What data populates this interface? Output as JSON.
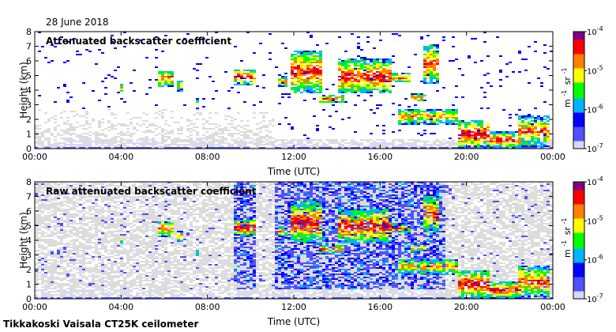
{
  "date_label": "28 June 2018",
  "footer": "Tikkakoski Vaisala CT25K ceilometer",
  "colors": {
    "clear_air": "#dcdcdc",
    "colormap": [
      "#d8d8ff",
      "#5050ff",
      "#0000ff",
      "#00b4ff",
      "#00ff00",
      "#ffff00",
      "#ff8000",
      "#ff0000",
      "#800080"
    ]
  },
  "chart_data": [
    {
      "type": "heatmap",
      "title": "Attenuated backscatter coefficient",
      "xlabel": "Time (UTC)",
      "ylabel": "Height (km)",
      "x_ticks": [
        "00:00",
        "04:00",
        "08:00",
        "12:00",
        "16:00",
        "20:00",
        "00:00"
      ],
      "xlim": [
        0,
        24
      ],
      "y_ticks": [
        "0",
        "1",
        "2",
        "3",
        "4",
        "5",
        "6",
        "7",
        "8"
      ],
      "ylim": [
        0,
        8
      ],
      "colorbar": {
        "scale": "log",
        "range": [
          1e-07,
          0.0001
        ],
        "tick_base": "10",
        "tick_exponents": [
          "-4",
          "-5",
          "-6",
          "-7"
        ],
        "unit_base": [
          "m",
          "sr"
        ],
        "unit_exponent": "-1"
      },
      "noise_level": "low",
      "cloud_features": [
        {
          "t_start": 3.9,
          "t_end": 4.05,
          "h_low": 3.8,
          "h_high": 4.6,
          "intensity": 0.7
        },
        {
          "t_start": 5.7,
          "t_end": 6.3,
          "h_low": 4.3,
          "h_high": 5.4,
          "intensity": 0.85
        },
        {
          "t_start": 6.5,
          "t_end": 6.8,
          "h_low": 4.0,
          "h_high": 4.7,
          "intensity": 0.7
        },
        {
          "t_start": 7.4,
          "t_end": 7.6,
          "h_low": 3.0,
          "h_high": 3.5,
          "intensity": 0.6
        },
        {
          "t_start": 9.2,
          "t_end": 10.1,
          "h_low": 4.4,
          "h_high": 5.5,
          "intensity": 0.95
        },
        {
          "t_start": 11.2,
          "t_end": 11.6,
          "h_low": 4.3,
          "h_high": 5.0,
          "intensity": 0.8
        },
        {
          "t_start": 11.8,
          "t_end": 13.2,
          "h_low": 3.8,
          "h_high": 6.8,
          "intensity": 0.9
        },
        {
          "t_start": 13.1,
          "t_end": 14.2,
          "h_low": 3.2,
          "h_high": 3.7,
          "intensity": 0.9
        },
        {
          "t_start": 14.0,
          "t_end": 16.5,
          "h_low": 3.8,
          "h_high": 6.2,
          "intensity": 0.9
        },
        {
          "t_start": 16.5,
          "t_end": 17.4,
          "h_low": 4.6,
          "h_high": 5.2,
          "intensity": 0.85
        },
        {
          "t_start": 17.3,
          "t_end": 18.0,
          "h_low": 3.3,
          "h_high": 3.8,
          "intensity": 0.8
        },
        {
          "t_start": 18.0,
          "t_end": 18.6,
          "h_low": 4.5,
          "h_high": 7.2,
          "intensity": 0.85
        },
        {
          "t_start": 16.8,
          "t_end": 19.5,
          "h_low": 1.7,
          "h_high": 2.8,
          "intensity": 0.75
        },
        {
          "t_start": 19.5,
          "t_end": 21.0,
          "h_low": 0.1,
          "h_high": 2.0,
          "intensity": 0.95
        },
        {
          "t_start": 21.0,
          "t_end": 22.4,
          "h_low": 0.1,
          "h_high": 1.2,
          "intensity": 0.9
        },
        {
          "t_start": 22.3,
          "t_end": 23.8,
          "h_low": 0.2,
          "h_high": 2.3,
          "intensity": 0.85
        }
      ]
    },
    {
      "type": "heatmap",
      "title": "Raw attenuated backscatter coefficient",
      "xlabel": "Time (UTC)",
      "ylabel": "Height (km)",
      "x_ticks": [
        "00:00",
        "04:00",
        "08:00",
        "12:00",
        "16:00",
        "20:00",
        "00:00"
      ],
      "xlim": [
        0,
        24
      ],
      "y_ticks": [
        "0",
        "1",
        "2",
        "3",
        "4",
        "5",
        "6",
        "7",
        "8"
      ],
      "ylim": [
        0,
        8
      ],
      "colorbar": {
        "scale": "log",
        "range": [
          1e-07,
          0.0001
        ],
        "tick_base": "10",
        "tick_exponents": [
          "-4",
          "-5",
          "-6",
          "-7"
        ],
        "unit_base": [
          "m",
          "sr"
        ],
        "unit_exponent": "-1"
      },
      "noise_level": "high",
      "cloud_features": [
        {
          "t_start": 3.9,
          "t_end": 4.05,
          "h_low": 3.8,
          "h_high": 4.6,
          "intensity": 0.7
        },
        {
          "t_start": 5.7,
          "t_end": 6.3,
          "h_low": 4.3,
          "h_high": 5.4,
          "intensity": 0.85
        },
        {
          "t_start": 6.5,
          "t_end": 6.8,
          "h_low": 4.0,
          "h_high": 4.7,
          "intensity": 0.7
        },
        {
          "t_start": 7.4,
          "t_end": 7.6,
          "h_low": 3.0,
          "h_high": 3.5,
          "intensity": 0.6
        },
        {
          "t_start": 9.2,
          "t_end": 10.1,
          "h_low": 4.4,
          "h_high": 5.5,
          "intensity": 0.95
        },
        {
          "t_start": 11.2,
          "t_end": 11.6,
          "h_low": 4.3,
          "h_high": 5.0,
          "intensity": 0.8
        },
        {
          "t_start": 11.8,
          "t_end": 13.2,
          "h_low": 3.8,
          "h_high": 6.8,
          "intensity": 0.9
        },
        {
          "t_start": 13.1,
          "t_end": 14.2,
          "h_low": 3.2,
          "h_high": 3.7,
          "intensity": 0.9
        },
        {
          "t_start": 14.0,
          "t_end": 16.5,
          "h_low": 3.8,
          "h_high": 6.2,
          "intensity": 0.9
        },
        {
          "t_start": 16.5,
          "t_end": 17.4,
          "h_low": 4.6,
          "h_high": 5.2,
          "intensity": 0.85
        },
        {
          "t_start": 17.3,
          "t_end": 18.0,
          "h_low": 3.3,
          "h_high": 3.8,
          "intensity": 0.8
        },
        {
          "t_start": 18.0,
          "t_end": 18.6,
          "h_low": 4.5,
          "h_high": 7.2,
          "intensity": 0.85
        },
        {
          "t_start": 16.8,
          "t_end": 19.5,
          "h_low": 1.7,
          "h_high": 2.8,
          "intensity": 0.75
        },
        {
          "t_start": 19.5,
          "t_end": 21.0,
          "h_low": 0.1,
          "h_high": 2.0,
          "intensity": 0.95
        },
        {
          "t_start": 21.0,
          "t_end": 22.4,
          "h_low": 0.1,
          "h_high": 1.2,
          "intensity": 0.9
        },
        {
          "t_start": 22.3,
          "t_end": 23.8,
          "h_low": 0.2,
          "h_high": 2.3,
          "intensity": 0.85
        }
      ]
    }
  ]
}
